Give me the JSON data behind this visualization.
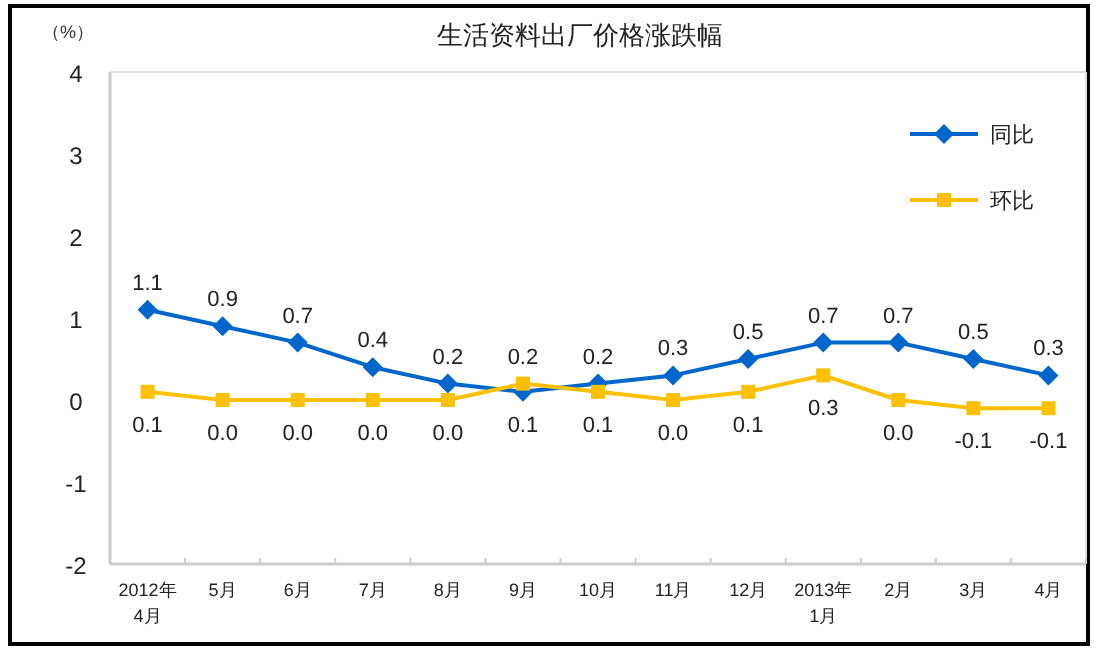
{
  "chart_data": {
    "type": "line",
    "title": "生活资料出厂价格涨跌幅",
    "ylabel": "（%）",
    "categories": [
      "2012年\n4月",
      "5月",
      "6月",
      "7月",
      "8月",
      "9月",
      "10月",
      "11月",
      "12月",
      "2013年\n1月",
      "2月",
      "3月",
      "4月"
    ],
    "series": [
      {
        "name": "同比",
        "color": "#0066cc",
        "marker": "diamond",
        "values": [
          1.1,
          0.9,
          0.7,
          0.4,
          0.2,
          0.1,
          0.2,
          0.3,
          0.5,
          0.7,
          0.7,
          0.5,
          0.3
        ],
        "value_labels": [
          "1.1",
          "0.9",
          "0.7",
          "0.4",
          "0.2",
          "0.1",
          "0.2",
          "0.3",
          "0.5",
          "0.7",
          "0.7",
          "0.5",
          "0.3"
        ]
      },
      {
        "name": "环比",
        "color": "#ffc000",
        "marker": "square",
        "values": [
          0.1,
          0.0,
          0.0,
          0.0,
          0.0,
          0.2,
          0.1,
          0.0,
          0.1,
          0.3,
          0.0,
          -0.1,
          -0.1
        ],
        "value_labels": [
          "0.1",
          "0.0",
          "0.0",
          "0.0",
          "0.0",
          "0.2",
          "0.1",
          "0.0",
          "0.1",
          "0.3",
          "0.0",
          "-0.1",
          "-0.1"
        ]
      }
    ],
    "ylim": [
      -2,
      4
    ],
    "yticks": [
      -2,
      -1,
      0,
      1,
      2,
      3,
      4
    ],
    "grid": false,
    "legend": "top right"
  }
}
